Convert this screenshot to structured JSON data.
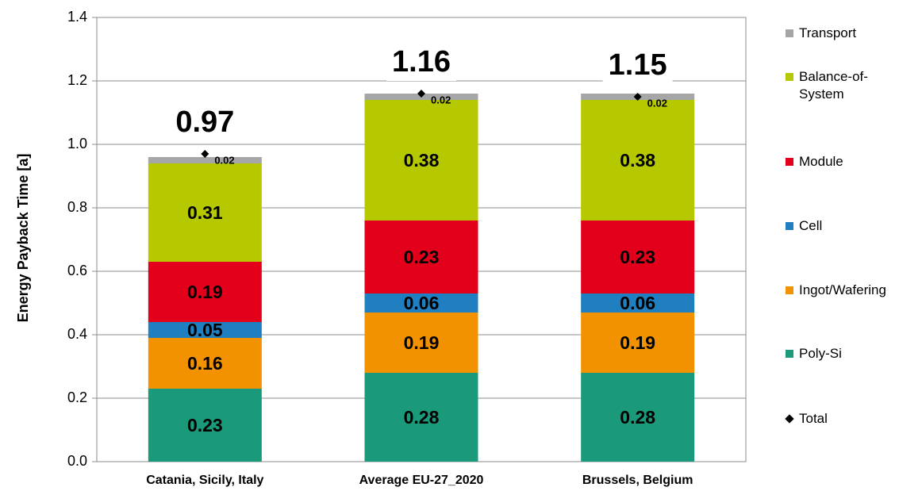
{
  "chart_data": {
    "type": "bar",
    "stacked": true,
    "ylabel": "Energy Payback Time [a]",
    "categories": [
      "Catania, Sicily, Italy",
      "Average EU-27_2020",
      "Brussels, Belgium"
    ],
    "series": [
      {
        "name": "Poly-Si",
        "color": "#1a9a7a",
        "values": [
          0.23,
          0.28,
          0.28
        ]
      },
      {
        "name": "Ingot/Wafering",
        "color": "#f39200",
        "values": [
          0.16,
          0.19,
          0.19
        ]
      },
      {
        "name": "Cell",
        "color": "#1f7fc0",
        "values": [
          0.05,
          0.06,
          0.06
        ]
      },
      {
        "name": "Module",
        "color": "#e3001b",
        "values": [
          0.19,
          0.23,
          0.23
        ]
      },
      {
        "name": "Balance-of-System",
        "color": "#b5c800",
        "values": [
          0.31,
          0.38,
          0.38
        ]
      },
      {
        "name": "Transport",
        "color": "#a6a6a6",
        "values": [
          0.02,
          0.02,
          0.02
        ]
      }
    ],
    "totals": {
      "name": "Total",
      "color": "#000000",
      "values": [
        0.97,
        1.16,
        1.15
      ]
    },
    "ylim": [
      0,
      1.4
    ],
    "yticks": [
      {
        "value": 0,
        "label": "0.0"
      },
      0.2,
      0.4,
      0.6,
      0.8,
      {
        "value": 1,
        "label": "1.0"
      },
      1.2,
      1.4
    ],
    "grid": true,
    "legend": "right"
  }
}
